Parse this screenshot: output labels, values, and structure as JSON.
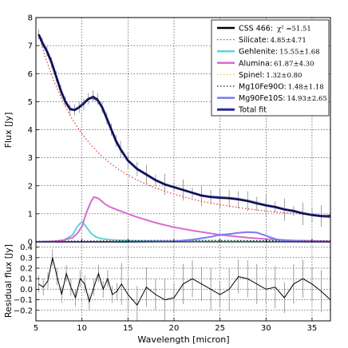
{
  "chart_data": [
    {
      "type": "line",
      "panel": "top",
      "xlabel": "",
      "ylabel": "Flux [Jy]",
      "xlim": [
        5,
        37
      ],
      "ylim": [
        0,
        8
      ],
      "xticks": [
        5,
        10,
        15,
        20,
        25,
        30,
        35
      ],
      "yticks": [
        0,
        1,
        2,
        3,
        4,
        5,
        6,
        7,
        8
      ],
      "grid": true,
      "legend_position": "top-right",
      "legend": [
        {
          "key": "data",
          "label": "CSS 466: ",
          "value": "χ² =51.51",
          "color": "#000000",
          "style": "solid"
        },
        {
          "key": "silicate",
          "label": "Silicate:",
          "value": "4.85±4.71",
          "color": "#e0352b",
          "style": "dotted"
        },
        {
          "key": "gehlenite",
          "label": "Gehlenite:",
          "value": "15.55±1.68",
          "color": "#5ed3d6",
          "style": "solid"
        },
        {
          "key": "alumina",
          "label": "Alumina:",
          "value": "61.87±4.30",
          "color": "#d86ad2",
          "style": "solid"
        },
        {
          "key": "spinel",
          "label": "Spinel:",
          "value": "1.32±0.80",
          "color": "#f2c64a",
          "style": "dotted"
        },
        {
          "key": "mg10fe90o",
          "label": "Mg10Fe90O:",
          "value": "1.48±1.18",
          "color": "#222222",
          "style": "dotted"
        },
        {
          "key": "mg90fe10s",
          "label": "Mg90Fe10S:",
          "value": "14.93±2.65",
          "color": "#7a7af0",
          "style": "solid"
        },
        {
          "key": "total",
          "label": "Total fit",
          "value": "",
          "color": "#2b2b9a",
          "style": "solid"
        }
      ],
      "series": [
        {
          "key": "data",
          "x": [
            5.3,
            5.7,
            6.2,
            6.7,
            7.2,
            7.7,
            8.2,
            8.7,
            9.2,
            9.7,
            10.2,
            10.7,
            11.2,
            11.7,
            12.2,
            12.7,
            13.2,
            13.7,
            14.2,
            15,
            16,
            17,
            18,
            19,
            20,
            21,
            22,
            23,
            24,
            25,
            26,
            27,
            28,
            29,
            30,
            31,
            32,
            33,
            34,
            35,
            36,
            37
          ],
          "y": [
            7.4,
            7.1,
            6.8,
            6.4,
            5.9,
            5.4,
            5.0,
            4.7,
            4.7,
            4.8,
            4.9,
            5.1,
            5.2,
            5.1,
            4.8,
            4.4,
            4.0,
            3.6,
            3.3,
            2.9,
            2.6,
            2.4,
            2.2,
            2.05,
            1.95,
            1.85,
            1.75,
            1.65,
            1.6,
            1.55,
            1.55,
            1.5,
            1.45,
            1.35,
            1.3,
            1.25,
            1.15,
            1.1,
            1.0,
            0.95,
            0.92,
            0.95
          ]
        },
        {
          "key": "total",
          "x": [
            5.3,
            5.7,
            6.2,
            6.7,
            7.2,
            7.7,
            8.2,
            8.7,
            9.2,
            9.7,
            10.2,
            10.7,
            11.2,
            11.7,
            12.2,
            12.7,
            13.2,
            13.7,
            14.2,
            15,
            16,
            17,
            18,
            19,
            20,
            21,
            22,
            23,
            24,
            25,
            26,
            27,
            28,
            29,
            30,
            31,
            32,
            33,
            34,
            35,
            36,
            37
          ],
          "y": [
            7.4,
            7.1,
            6.8,
            6.4,
            5.9,
            5.4,
            5.0,
            4.75,
            4.7,
            4.8,
            4.95,
            5.1,
            5.15,
            5.05,
            4.8,
            4.4,
            4.0,
            3.6,
            3.3,
            2.9,
            2.6,
            2.4,
            2.2,
            2.05,
            1.95,
            1.85,
            1.75,
            1.65,
            1.6,
            1.58,
            1.56,
            1.52,
            1.46,
            1.38,
            1.3,
            1.24,
            1.16,
            1.1,
            1.02,
            0.96,
            0.92,
            0.9
          ]
        },
        {
          "key": "silicate",
          "x": [
            5.3,
            6,
            7,
            8,
            9,
            10,
            11,
            12,
            13,
            14,
            15,
            16,
            18,
            20,
            22,
            24,
            26,
            28,
            30,
            32,
            34,
            36,
            37
          ],
          "y": [
            7.4,
            6.6,
            5.7,
            4.95,
            4.35,
            3.85,
            3.45,
            3.1,
            2.82,
            2.58,
            2.38,
            2.2,
            1.92,
            1.7,
            1.52,
            1.38,
            1.27,
            1.18,
            1.1,
            1.04,
            0.99,
            0.95,
            0.93
          ]
        },
        {
          "key": "gehlenite",
          "x": [
            5,
            7,
            8,
            9,
            9.5,
            10,
            10.5,
            11,
            11.5,
            12,
            13,
            14,
            16,
            20,
            25,
            30,
            37
          ],
          "y": [
            0,
            0.01,
            0.05,
            0.25,
            0.55,
            0.72,
            0.52,
            0.3,
            0.18,
            0.12,
            0.08,
            0.06,
            0.04,
            0.02,
            0.01,
            0.01,
            0
          ]
        },
        {
          "key": "alumina",
          "x": [
            5,
            7,
            8,
            9,
            9.5,
            10,
            10.5,
            11,
            11.3,
            11.8,
            12.5,
            13,
            14,
            15,
            16,
            17,
            18,
            20,
            22,
            25,
            28,
            30,
            33,
            37
          ],
          "y": [
            0,
            0.02,
            0.06,
            0.15,
            0.3,
            0.55,
            1.05,
            1.45,
            1.6,
            1.55,
            1.35,
            1.25,
            1.12,
            1.0,
            0.88,
            0.78,
            0.68,
            0.52,
            0.4,
            0.25,
            0.15,
            0.1,
            0.05,
            0.02
          ]
        },
        {
          "key": "spinel",
          "x": [
            5,
            10,
            12,
            13,
            14,
            15,
            17,
            20,
            25,
            30,
            37
          ],
          "y": [
            0,
            0.01,
            0.03,
            0.06,
            0.05,
            0.04,
            0.03,
            0.02,
            0.02,
            0.01,
            0
          ]
        },
        {
          "key": "mg10fe90o",
          "x": [
            5,
            10,
            15,
            18,
            20,
            25,
            30,
            37
          ],
          "y": [
            0.02,
            0.03,
            0.04,
            0.05,
            0.05,
            0.05,
            0.04,
            0.03
          ]
        },
        {
          "key": "mg90fe10s",
          "x": [
            5,
            10,
            15,
            20,
            22,
            24,
            25,
            26,
            27,
            28,
            29,
            30,
            31,
            32,
            34,
            37
          ],
          "y": [
            0,
            0,
            0,
            0.02,
            0.08,
            0.18,
            0.25,
            0.28,
            0.32,
            0.35,
            0.33,
            0.22,
            0.1,
            0.04,
            0.01,
            0
          ]
        }
      ]
    },
    {
      "type": "line",
      "panel": "bottom",
      "xlabel": "Wavelength [micron]",
      "ylabel": "Residual flux [Jy]",
      "xlim": [
        5,
        37
      ],
      "ylim": [
        -0.3,
        0.45
      ],
      "xticks": [
        5,
        10,
        15,
        20,
        25,
        30,
        35
      ],
      "yticks": [
        -0.2,
        -0.1,
        0.0,
        0.1,
        0.2,
        0.3,
        0.4
      ],
      "ytick_labels": [
        "−0.2",
        "−0.1",
        "0.0",
        "0.1",
        "0.2",
        "0.3",
        "0.4"
      ],
      "xtick_labels": [
        "5",
        "10",
        "15",
        "20",
        "25",
        "30",
        "35"
      ],
      "grid": true,
      "series": [
        {
          "key": "residual",
          "x": [
            5.3,
            5.8,
            6.3,
            6.8,
            7.3,
            7.8,
            8.3,
            8.8,
            9.3,
            9.8,
            10.3,
            10.8,
            11.3,
            11.8,
            12.3,
            12.8,
            13.3,
            13.8,
            14.3,
            15,
            16,
            17,
            18,
            19,
            20,
            21,
            22,
            23,
            24,
            25,
            26,
            27,
            28,
            29,
            30,
            31,
            32,
            33,
            34,
            35,
            36,
            37
          ],
          "y": [
            0.05,
            0.02,
            0.08,
            0.3,
            0.12,
            -0.05,
            0.15,
            0.02,
            -0.08,
            0.1,
            0.05,
            -0.12,
            0.02,
            0.15,
            0.0,
            0.1,
            -0.05,
            -0.02,
            0.05,
            -0.05,
            -0.15,
            0.02,
            -0.05,
            -0.1,
            -0.08,
            0.05,
            0.1,
            0.05,
            0.0,
            -0.05,
            0.0,
            0.12,
            0.1,
            0.05,
            0.0,
            0.02,
            -0.08,
            0.05,
            0.1,
            0.05,
            -0.02,
            -0.1
          ]
        }
      ]
    }
  ]
}
